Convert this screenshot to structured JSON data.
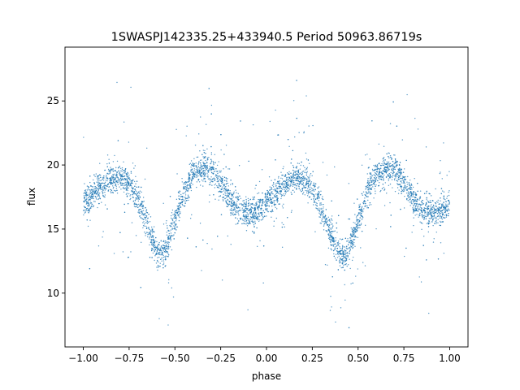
{
  "chart_data": {
    "type": "scatter",
    "title": "1SWASPJ142335.25+433940.5 Period 50963.86719s",
    "xlabel": "phase",
    "ylabel": "flux",
    "xlim": [
      -1.1,
      1.1
    ],
    "ylim": [
      5.8,
      29.2
    ],
    "xticks": [
      -1.0,
      -0.75,
      -0.5,
      -0.25,
      0.0,
      0.25,
      0.5,
      0.75,
      1.0
    ],
    "xtick_labels": [
      "−1.00",
      "−0.75",
      "−0.50",
      "−0.25",
      "0.00",
      "0.25",
      "0.50",
      "0.75",
      "1.00"
    ],
    "yticks": [
      10,
      15,
      20,
      25
    ],
    "ytick_labels": [
      "10",
      "15",
      "20",
      "25"
    ],
    "grid": false,
    "legend": "none",
    "point_color": "#1f77b4",
    "series": [
      {
        "phase": [
          -1.0,
          -0.95,
          -0.9,
          -0.85,
          -0.8,
          -0.75,
          -0.7,
          -0.65,
          -0.6,
          -0.57,
          -0.55,
          -0.5,
          -0.45,
          -0.4,
          -0.35,
          -0.3,
          -0.25,
          -0.2,
          -0.15,
          -0.1,
          -0.05,
          0.0,
          0.05,
          0.1,
          0.15,
          0.2,
          0.25,
          0.3,
          0.35,
          0.4,
          0.43,
          0.45,
          0.5,
          0.55,
          0.6,
          0.65,
          0.7,
          0.75,
          0.8,
          0.85,
          0.9,
          0.95,
          1.0
        ],
        "flux": [
          16.9,
          17.8,
          18.4,
          18.9,
          19.0,
          18.6,
          17.3,
          15.3,
          13.2,
          12.8,
          13.4,
          15.6,
          17.9,
          19.3,
          19.8,
          19.6,
          18.6,
          17.3,
          16.5,
          16.3,
          16.4,
          17.0,
          17.8,
          18.5,
          18.9,
          18.8,
          18.2,
          16.6,
          14.6,
          13.0,
          12.8,
          13.4,
          15.6,
          17.9,
          19.3,
          19.8,
          19.6,
          18.6,
          17.3,
          16.5,
          16.3,
          16.4,
          16.9
        ]
      }
    ]
  }
}
